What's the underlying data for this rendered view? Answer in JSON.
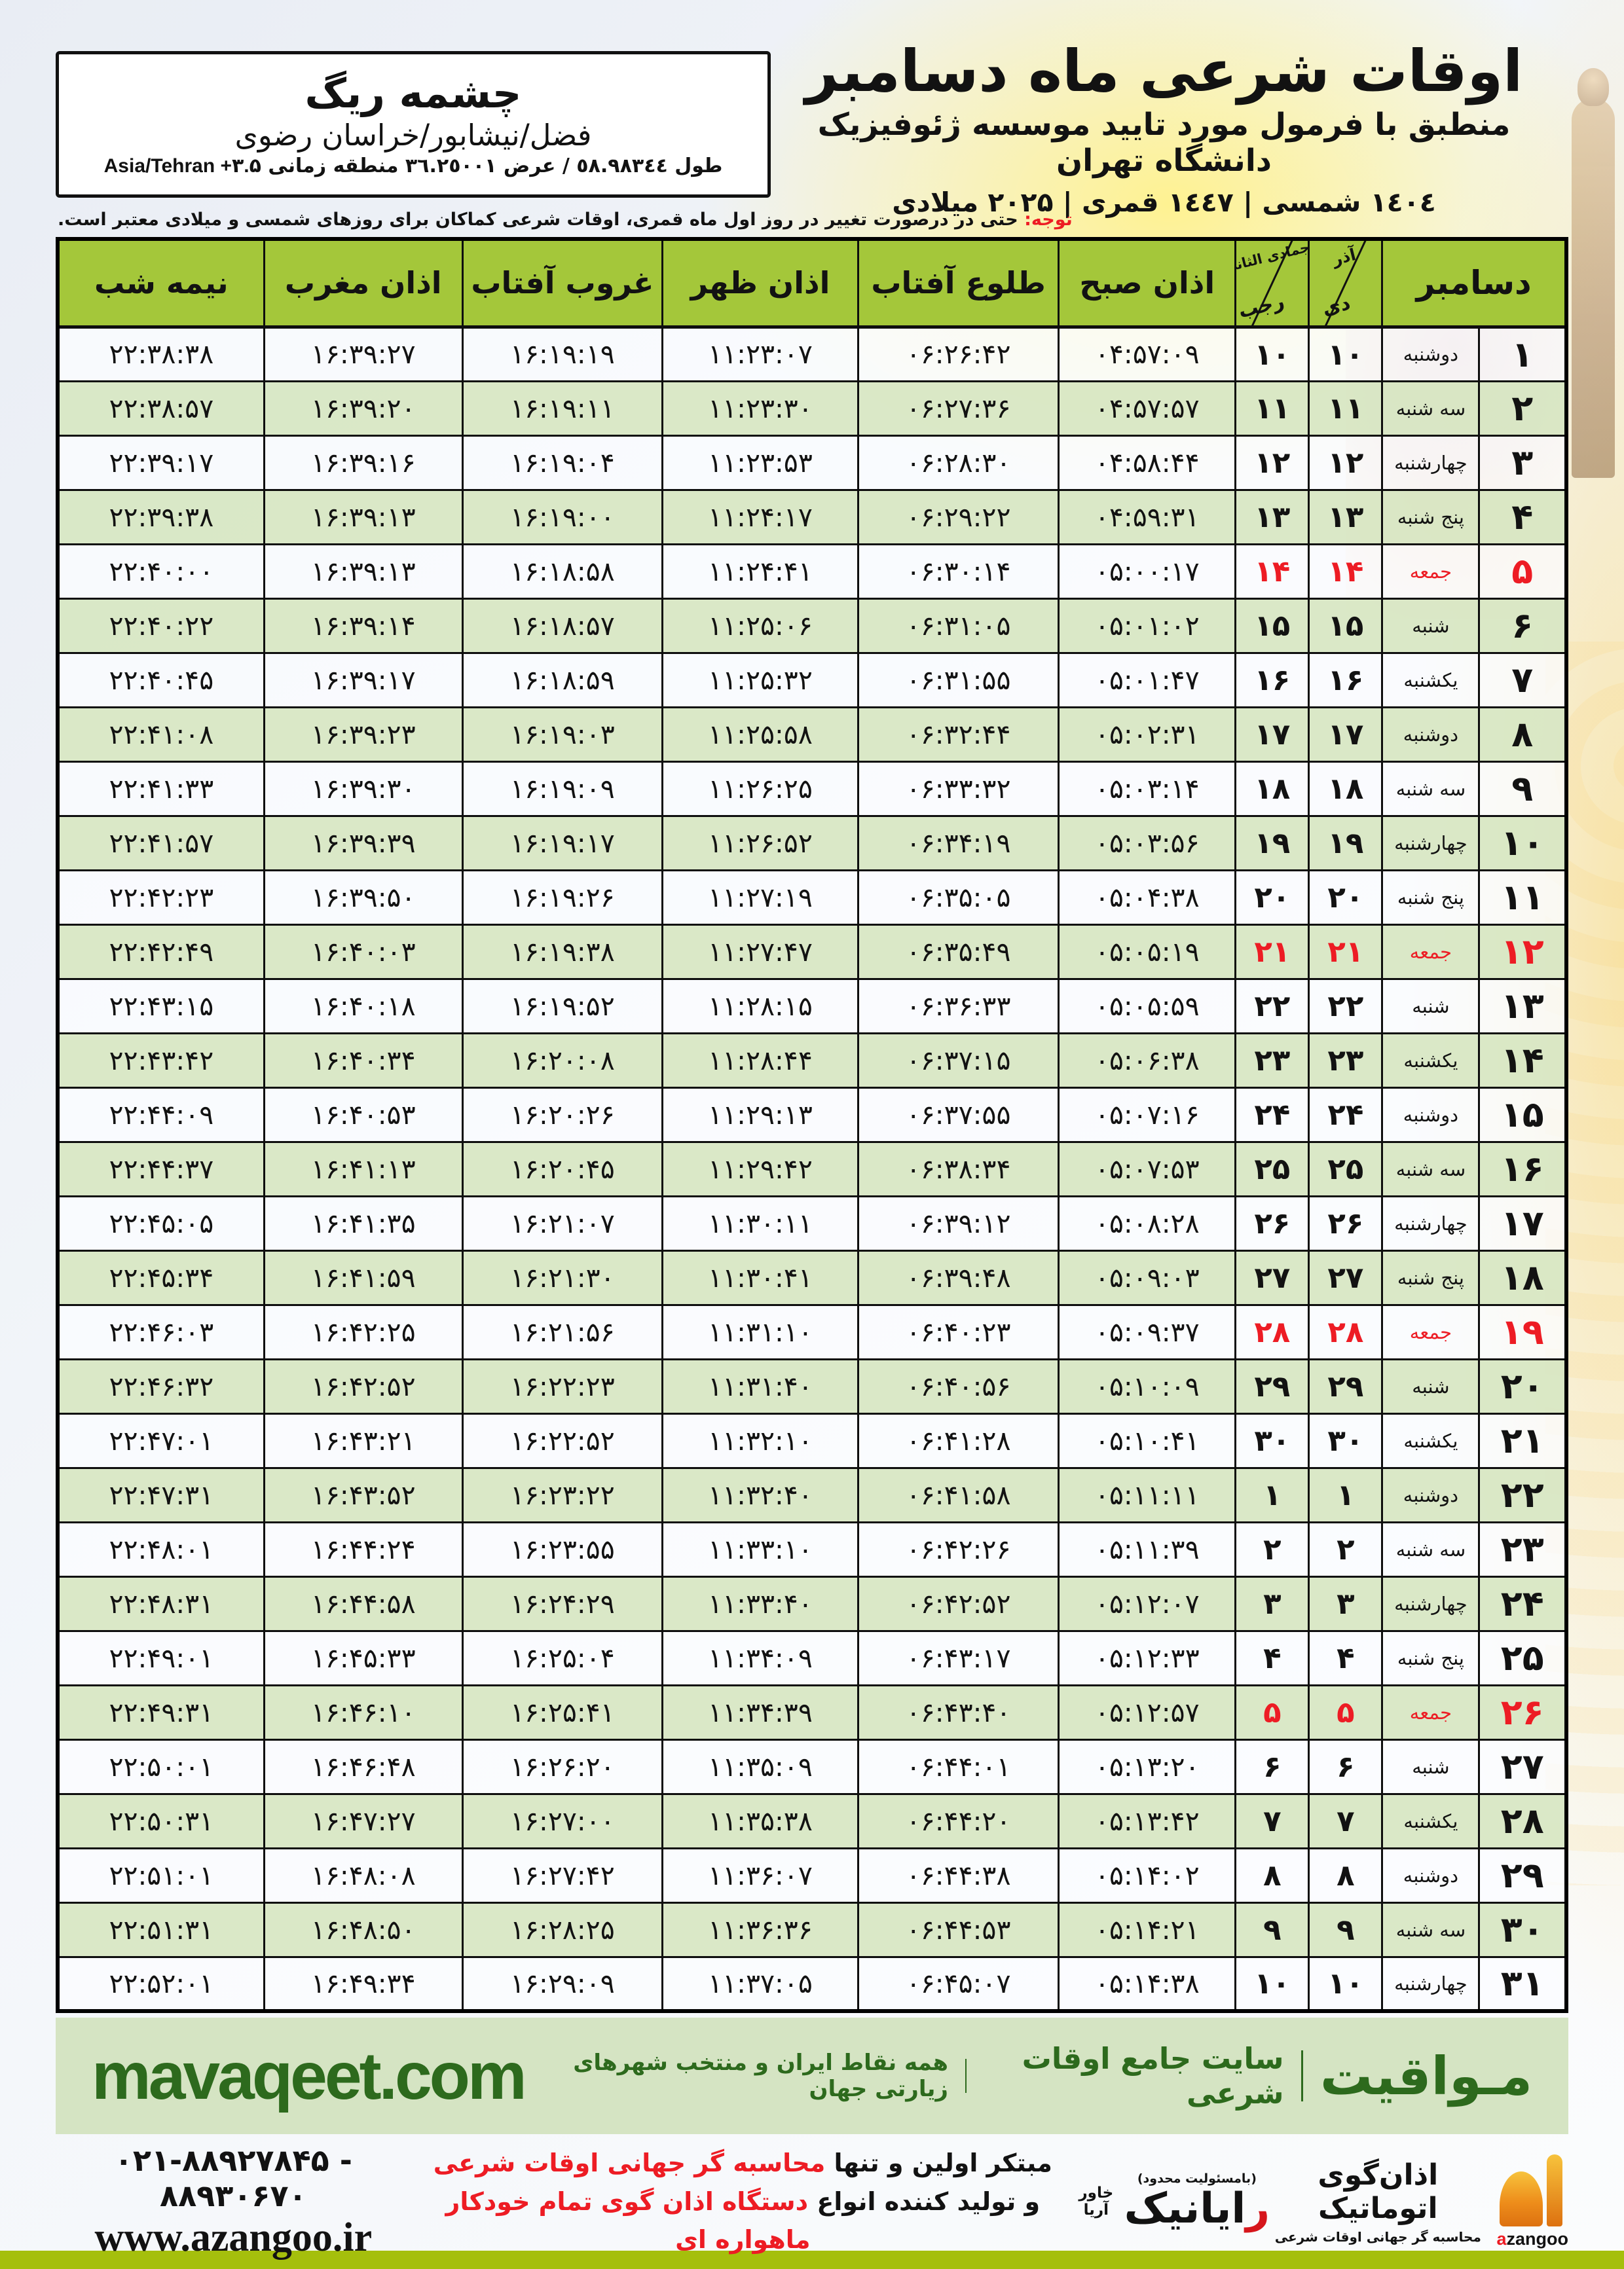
{
  "header": {
    "title": "اوقات شرعی ماه دسامبر",
    "subtitle": "منطبق با فرمول مورد تایید موسسه ژئوفیزیک دانشگاه تهران",
    "calendar_line": "١٤٠٤ شمسی | ١٤٤٧ قمری | ۲۰۲۵ میلادی"
  },
  "location": {
    "name": "چشمه ریگ",
    "region": "فضل/نیشابور/خراسان رضوی",
    "coords_fa": "طول ٥٨.٩٨٣٤٤ / عرض ٣٦.٢٥٠٠١ منطقه زمانی",
    "timezone": "Asia/Tehran +۳.۵"
  },
  "note": {
    "label": "توجه:",
    "text": " حتی در درصورت تغییر در روز اول ماه قمری، اوقات شرعی کماکان برای روزهای شمسی و میلادی معتبر است."
  },
  "table": {
    "headers": {
      "december": "دسامبر",
      "solar_top": "آذر",
      "solar_bottom": "دی",
      "lunar_top": "جمادی الثانی",
      "lunar_bottom": "رجب",
      "sobh": "اذان صبح",
      "tolu": "طلوع آفتاب",
      "zohr": "اذان ظهر",
      "ghorub": "غروب آفتاب",
      "maghreb": "اذان مغرب",
      "nimeshab": "نیمه شب"
    },
    "rows": [
      {
        "day": "۱",
        "weekday": "دوشنبه",
        "solar": "۱۰",
        "lunar": "۱۰",
        "sobh": "۰۴:۵۷:۰۹",
        "tolu": "۰۶:۲۶:۴۲",
        "zohr": "۱۱:۲۳:۰۷",
        "ghorub": "۱۶:۱۹:۱۹",
        "maghreb": "۱۶:۳۹:۲۷",
        "nimeshab": "۲۲:۳۸:۳۸",
        "holiday": false
      },
      {
        "day": "۲",
        "weekday": "سه شنبه",
        "solar": "۱۱",
        "lunar": "۱۱",
        "sobh": "۰۴:۵۷:۵۷",
        "tolu": "۰۶:۲۷:۳۶",
        "zohr": "۱۱:۲۳:۳۰",
        "ghorub": "۱۶:۱۹:۱۱",
        "maghreb": "۱۶:۳۹:۲۰",
        "nimeshab": "۲۲:۳۸:۵۷",
        "holiday": false
      },
      {
        "day": "۳",
        "weekday": "چهارشنبه",
        "solar": "۱۲",
        "lunar": "۱۲",
        "sobh": "۰۴:۵۸:۴۴",
        "tolu": "۰۶:۲۸:۳۰",
        "zohr": "۱۱:۲۳:۵۳",
        "ghorub": "۱۶:۱۹:۰۴",
        "maghreb": "۱۶:۳۹:۱۶",
        "nimeshab": "۲۲:۳۹:۱۷",
        "holiday": false
      },
      {
        "day": "۴",
        "weekday": "پنج شنبه",
        "solar": "۱۳",
        "lunar": "۱۳",
        "sobh": "۰۴:۵۹:۳۱",
        "tolu": "۰۶:۲۹:۲۲",
        "zohr": "۱۱:۲۴:۱۷",
        "ghorub": "۱۶:۱۹:۰۰",
        "maghreb": "۱۶:۳۹:۱۳",
        "nimeshab": "۲۲:۳۹:۳۸",
        "holiday": false
      },
      {
        "day": "۵",
        "weekday": "جمعه",
        "solar": "۱۴",
        "lunar": "۱۴",
        "sobh": "۰۵:۰۰:۱۷",
        "tolu": "۰۶:۳۰:۱۴",
        "zohr": "۱۱:۲۴:۴۱",
        "ghorub": "۱۶:۱۸:۵۸",
        "maghreb": "۱۶:۳۹:۱۳",
        "nimeshab": "۲۲:۴۰:۰۰",
        "holiday": true
      },
      {
        "day": "۶",
        "weekday": "شنبه",
        "solar": "۱۵",
        "lunar": "۱۵",
        "sobh": "۰۵:۰۱:۰۲",
        "tolu": "۰۶:۳۱:۰۵",
        "zohr": "۱۱:۲۵:۰۶",
        "ghorub": "۱۶:۱۸:۵۷",
        "maghreb": "۱۶:۳۹:۱۴",
        "nimeshab": "۲۲:۴۰:۲۲",
        "holiday": false
      },
      {
        "day": "۷",
        "weekday": "یکشنبه",
        "solar": "۱۶",
        "lunar": "۱۶",
        "sobh": "۰۵:۰۱:۴۷",
        "tolu": "۰۶:۳۱:۵۵",
        "zohr": "۱۱:۲۵:۳۲",
        "ghorub": "۱۶:۱۸:۵۹",
        "maghreb": "۱۶:۳۹:۱۷",
        "nimeshab": "۲۲:۴۰:۴۵",
        "holiday": false
      },
      {
        "day": "۸",
        "weekday": "دوشنبه",
        "solar": "۱۷",
        "lunar": "۱۷",
        "sobh": "۰۵:۰۲:۳۱",
        "tolu": "۰۶:۳۲:۴۴",
        "zohr": "۱۱:۲۵:۵۸",
        "ghorub": "۱۶:۱۹:۰۳",
        "maghreb": "۱۶:۳۹:۲۳",
        "nimeshab": "۲۲:۴۱:۰۸",
        "holiday": false
      },
      {
        "day": "۹",
        "weekday": "سه شنبه",
        "solar": "۱۸",
        "lunar": "۱۸",
        "sobh": "۰۵:۰۳:۱۴",
        "tolu": "۰۶:۳۳:۳۲",
        "zohr": "۱۱:۲۶:۲۵",
        "ghorub": "۱۶:۱۹:۰۹",
        "maghreb": "۱۶:۳۹:۳۰",
        "nimeshab": "۲۲:۴۱:۳۳",
        "holiday": false
      },
      {
        "day": "۱۰",
        "weekday": "چهارشنبه",
        "solar": "۱۹",
        "lunar": "۱۹",
        "sobh": "۰۵:۰۳:۵۶",
        "tolu": "۰۶:۳۴:۱۹",
        "zohr": "۱۱:۲۶:۵۲",
        "ghorub": "۱۶:۱۹:۱۷",
        "maghreb": "۱۶:۳۹:۳۹",
        "nimeshab": "۲۲:۴۱:۵۷",
        "holiday": false
      },
      {
        "day": "۱۱",
        "weekday": "پنج شنبه",
        "solar": "۲۰",
        "lunar": "۲۰",
        "sobh": "۰۵:۰۴:۳۸",
        "tolu": "۰۶:۳۵:۰۵",
        "zohr": "۱۱:۲۷:۱۹",
        "ghorub": "۱۶:۱۹:۲۶",
        "maghreb": "۱۶:۳۹:۵۰",
        "nimeshab": "۲۲:۴۲:۲۳",
        "holiday": false
      },
      {
        "day": "۱۲",
        "weekday": "جمعه",
        "solar": "۲۱",
        "lunar": "۲۱",
        "sobh": "۰۵:۰۵:۱۹",
        "tolu": "۰۶:۳۵:۴۹",
        "zohr": "۱۱:۲۷:۴۷",
        "ghorub": "۱۶:۱۹:۳۸",
        "maghreb": "۱۶:۴۰:۰۳",
        "nimeshab": "۲۲:۴۲:۴۹",
        "holiday": true
      },
      {
        "day": "۱۳",
        "weekday": "شنبه",
        "solar": "۲۲",
        "lunar": "۲۲",
        "sobh": "۰۵:۰۵:۵۹",
        "tolu": "۰۶:۳۶:۳۳",
        "zohr": "۱۱:۲۸:۱۵",
        "ghorub": "۱۶:۱۹:۵۲",
        "maghreb": "۱۶:۴۰:۱۸",
        "nimeshab": "۲۲:۴۳:۱۵",
        "holiday": false
      },
      {
        "day": "۱۴",
        "weekday": "یکشنبه",
        "solar": "۲۳",
        "lunar": "۲۳",
        "sobh": "۰۵:۰۶:۳۸",
        "tolu": "۰۶:۳۷:۱۵",
        "zohr": "۱۱:۲۸:۴۴",
        "ghorub": "۱۶:۲۰:۰۸",
        "maghreb": "۱۶:۴۰:۳۴",
        "nimeshab": "۲۲:۴۳:۴۲",
        "holiday": false
      },
      {
        "day": "۱۵",
        "weekday": "دوشنبه",
        "solar": "۲۴",
        "lunar": "۲۴",
        "sobh": "۰۵:۰۷:۱۶",
        "tolu": "۰۶:۳۷:۵۵",
        "zohr": "۱۱:۲۹:۱۳",
        "ghorub": "۱۶:۲۰:۲۶",
        "maghreb": "۱۶:۴۰:۵۳",
        "nimeshab": "۲۲:۴۴:۰۹",
        "holiday": false
      },
      {
        "day": "۱۶",
        "weekday": "سه شنبه",
        "solar": "۲۵",
        "lunar": "۲۵",
        "sobh": "۰۵:۰۷:۵۳",
        "tolu": "۰۶:۳۸:۳۴",
        "zohr": "۱۱:۲۹:۴۲",
        "ghorub": "۱۶:۲۰:۴۵",
        "maghreb": "۱۶:۴۱:۱۳",
        "nimeshab": "۲۲:۴۴:۳۷",
        "holiday": false
      },
      {
        "day": "۱۷",
        "weekday": "چهارشنبه",
        "solar": "۲۶",
        "lunar": "۲۶",
        "sobh": "۰۵:۰۸:۲۸",
        "tolu": "۰۶:۳۹:۱۲",
        "zohr": "۱۱:۳۰:۱۱",
        "ghorub": "۱۶:۲۱:۰۷",
        "maghreb": "۱۶:۴۱:۳۵",
        "nimeshab": "۲۲:۴۵:۰۵",
        "holiday": false
      },
      {
        "day": "۱۸",
        "weekday": "پنج شنبه",
        "solar": "۲۷",
        "lunar": "۲۷",
        "sobh": "۰۵:۰۹:۰۳",
        "tolu": "۰۶:۳۹:۴۸",
        "zohr": "۱۱:۳۰:۴۱",
        "ghorub": "۱۶:۲۱:۳۰",
        "maghreb": "۱۶:۴۱:۵۹",
        "nimeshab": "۲۲:۴۵:۳۴",
        "holiday": false
      },
      {
        "day": "۱۹",
        "weekday": "جمعه",
        "solar": "۲۸",
        "lunar": "۲۸",
        "sobh": "۰۵:۰۹:۳۷",
        "tolu": "۰۶:۴۰:۲۳",
        "zohr": "۱۱:۳۱:۱۰",
        "ghorub": "۱۶:۲۱:۵۶",
        "maghreb": "۱۶:۴۲:۲۵",
        "nimeshab": "۲۲:۴۶:۰۳",
        "holiday": true
      },
      {
        "day": "۲۰",
        "weekday": "شنبه",
        "solar": "۲۹",
        "lunar": "۲۹",
        "sobh": "۰۵:۱۰:۰۹",
        "tolu": "۰۶:۴۰:۵۶",
        "zohr": "۱۱:۳۱:۴۰",
        "ghorub": "۱۶:۲۲:۲۳",
        "maghreb": "۱۶:۴۲:۵۲",
        "nimeshab": "۲۲:۴۶:۳۲",
        "holiday": false
      },
      {
        "day": "۲۱",
        "weekday": "یکشنبه",
        "solar": "۳۰",
        "lunar": "۳۰",
        "sobh": "۰۵:۱۰:۴۱",
        "tolu": "۰۶:۴۱:۲۸",
        "zohr": "۱۱:۳۲:۱۰",
        "ghorub": "۱۶:۲۲:۵۲",
        "maghreb": "۱۶:۴۳:۲۱",
        "nimeshab": "۲۲:۴۷:۰۱",
        "holiday": false
      },
      {
        "day": "۲۲",
        "weekday": "دوشنبه",
        "solar": "۱",
        "lunar": "۱",
        "sobh": "۰۵:۱۱:۱۱",
        "tolu": "۰۶:۴۱:۵۸",
        "zohr": "۱۱:۳۲:۴۰",
        "ghorub": "۱۶:۲۳:۲۲",
        "maghreb": "۱۶:۴۳:۵۲",
        "nimeshab": "۲۲:۴۷:۳۱",
        "holiday": false
      },
      {
        "day": "۲۳",
        "weekday": "سه شنبه",
        "solar": "۲",
        "lunar": "۲",
        "sobh": "۰۵:۱۱:۳۹",
        "tolu": "۰۶:۴۲:۲۶",
        "zohr": "۱۱:۳۳:۱۰",
        "ghorub": "۱۶:۲۳:۵۵",
        "maghreb": "۱۶:۴۴:۲۴",
        "nimeshab": "۲۲:۴۸:۰۱",
        "holiday": false
      },
      {
        "day": "۲۴",
        "weekday": "چهارشنبه",
        "solar": "۳",
        "lunar": "۳",
        "sobh": "۰۵:۱۲:۰۷",
        "tolu": "۰۶:۴۲:۵۲",
        "zohr": "۱۱:۳۳:۴۰",
        "ghorub": "۱۶:۲۴:۲۹",
        "maghreb": "۱۶:۴۴:۵۸",
        "nimeshab": "۲۲:۴۸:۳۱",
        "holiday": false
      },
      {
        "day": "۲۵",
        "weekday": "پنج شنبه",
        "solar": "۴",
        "lunar": "۴",
        "sobh": "۰۵:۱۲:۳۳",
        "tolu": "۰۶:۴۳:۱۷",
        "zohr": "۱۱:۳۴:۰۹",
        "ghorub": "۱۶:۲۵:۰۴",
        "maghreb": "۱۶:۴۵:۳۳",
        "nimeshab": "۲۲:۴۹:۰۱",
        "holiday": false
      },
      {
        "day": "۲۶",
        "weekday": "جمعه",
        "solar": "۵",
        "lunar": "۵",
        "sobh": "۰۵:۱۲:۵۷",
        "tolu": "۰۶:۴۳:۴۰",
        "zohr": "۱۱:۳۴:۳۹",
        "ghorub": "۱۶:۲۵:۴۱",
        "maghreb": "۱۶:۴۶:۱۰",
        "nimeshab": "۲۲:۴۹:۳۱",
        "holiday": true
      },
      {
        "day": "۲۷",
        "weekday": "شنبه",
        "solar": "۶",
        "lunar": "۶",
        "sobh": "۰۵:۱۳:۲۰",
        "tolu": "۰۶:۴۴:۰۱",
        "zohr": "۱۱:۳۵:۰۹",
        "ghorub": "۱۶:۲۶:۲۰",
        "maghreb": "۱۶:۴۶:۴۸",
        "nimeshab": "۲۲:۵۰:۰۱",
        "holiday": false
      },
      {
        "day": "۲۸",
        "weekday": "یکشنبه",
        "solar": "۷",
        "lunar": "۷",
        "sobh": "۰۵:۱۳:۴۲",
        "tolu": "۰۶:۴۴:۲۰",
        "zohr": "۱۱:۳۵:۳۸",
        "ghorub": "۱۶:۲۷:۰۰",
        "maghreb": "۱۶:۴۷:۲۷",
        "nimeshab": "۲۲:۵۰:۳۱",
        "holiday": false
      },
      {
        "day": "۲۹",
        "weekday": "دوشنبه",
        "solar": "۸",
        "lunar": "۸",
        "sobh": "۰۵:۱۴:۰۲",
        "tolu": "۰۶:۴۴:۳۸",
        "zohr": "۱۱:۳۶:۰۷",
        "ghorub": "۱۶:۲۷:۴۲",
        "maghreb": "۱۶:۴۸:۰۸",
        "nimeshab": "۲۲:۵۱:۰۱",
        "holiday": false
      },
      {
        "day": "۳۰",
        "weekday": "سه شنبه",
        "solar": "۹",
        "lunar": "۹",
        "sobh": "۰۵:۱۴:۲۱",
        "tolu": "۰۶:۴۴:۵۳",
        "zohr": "۱۱:۳۶:۳۶",
        "ghorub": "۱۶:۲۸:۲۵",
        "maghreb": "۱۶:۴۸:۵۰",
        "nimeshab": "۲۲:۵۱:۳۱",
        "holiday": false
      },
      {
        "day": "۳۱",
        "weekday": "چهارشنبه",
        "solar": "۱۰",
        "lunar": "۱۰",
        "sobh": "۰۵:۱۴:۳۸",
        "tolu": "۰۶:۴۵:۰۷",
        "zohr": "۱۱:۳۷:۰۵",
        "ghorub": "۱۶:۲۹:۰۹",
        "maghreb": "۱۶:۴۹:۳۴",
        "nimeshab": "۲۲:۵۲:۰۱",
        "holiday": false
      }
    ]
  },
  "site_band": {
    "name": "مـواقیت",
    "desc": "سایت جامع اوقات شرعی",
    "scope": "همه نقاط ایران و منتخب شهرهای زیارتی جهان",
    "url": "mavaqeet.com"
  },
  "bottom": {
    "phones": "۰۲۱-۸۸۹۲۷۸۴۵ - ۸۸۹۳۰۶۷۰",
    "website": "www.azangoo.ir",
    "promo_line1_black": "مبتکر اولین و تنها ",
    "promo_line1_red": "محاسبه گر جهانی اوقات شرعی",
    "promo_line2_black": "و تولید کننده انواع ",
    "promo_line2_red": "دستگاه اذان گوی تمام خودکار ماهواره ای",
    "rayanik_note": "(بامسئولیت محدود)",
    "rayanik_name": "رایانیک",
    "rayanik_sub": "خاور آریا",
    "azangoo_fa": "اذان‌گوی اتوماتیک",
    "azangoo_sub": "محاسبه گر جهانی اوقات شرعی",
    "azangoo_en": "azangoo"
  },
  "colors": {
    "header_green": "#a4c73a",
    "row_green": "#d8e7c4",
    "accent_red": "#ed1c24",
    "band_green": "#d5e4c3",
    "dark_green": "#2d6a1d",
    "strip_olive": "#a5bf0c"
  }
}
